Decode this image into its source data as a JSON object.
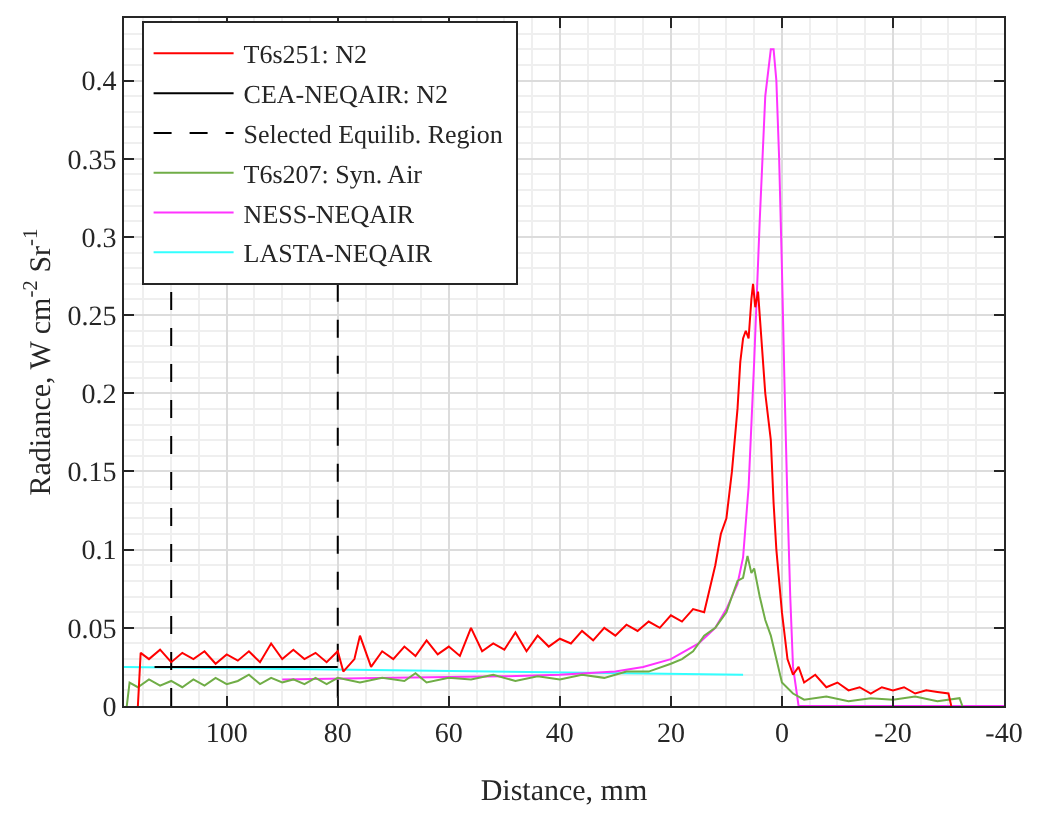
{
  "chart_data": {
    "type": "line",
    "xlabel": "Distance, mm",
    "ylabel": "Radiance, W cm$^{-2}$ Sr$^{-1}$",
    "xlim": [
      118.5,
      -40
    ],
    "ylim": [
      0,
      0.44
    ],
    "xticks": [
      100,
      80,
      60,
      40,
      20,
      0,
      -20,
      -40
    ],
    "yticks": [
      0,
      0.05,
      0.1,
      0.15,
      0.2,
      0.25,
      0.3,
      0.35,
      0.4
    ],
    "grid": true,
    "legend": "top left",
    "marker": "none",
    "series": [
      {
        "name": "T6s251: N2",
        "color": "#ff0000",
        "line_style": "solid",
        "x": [
          116,
          115.5,
          114,
          112,
          110,
          108,
          106,
          104,
          102,
          100,
          98,
          96,
          94,
          92,
          90,
          88,
          86,
          84,
          82,
          80,
          79,
          77,
          76,
          74,
          72,
          70,
          68,
          66,
          64,
          62,
          60,
          58,
          56,
          54,
          52,
          50,
          48,
          46,
          44,
          42,
          40,
          38,
          36,
          34,
          32,
          30,
          28,
          26,
          24,
          22,
          20,
          18,
          16,
          14,
          13,
          12,
          11,
          10,
          9,
          8,
          7.5,
          7,
          6.5,
          6,
          5.5,
          5.2,
          4.8,
          4.3,
          3.8,
          3,
          2,
          1.5,
          1,
          0,
          -1,
          -2,
          -3,
          -4,
          -6,
          -8,
          -10,
          -12,
          -14,
          -16,
          -18,
          -20,
          -22,
          -24,
          -26,
          -28,
          -30,
          -30.5
        ],
        "values": [
          0,
          0.034,
          0.03,
          0.036,
          0.028,
          0.034,
          0.03,
          0.035,
          0.027,
          0.033,
          0.029,
          0.035,
          0.028,
          0.04,
          0.03,
          0.036,
          0.03,
          0.034,
          0.028,
          0.035,
          0.022,
          0.03,
          0.045,
          0.025,
          0.035,
          0.03,
          0.038,
          0.032,
          0.042,
          0.033,
          0.038,
          0.032,
          0.05,
          0.035,
          0.04,
          0.036,
          0.047,
          0.035,
          0.045,
          0.038,
          0.043,
          0.04,
          0.048,
          0.042,
          0.05,
          0.045,
          0.052,
          0.048,
          0.054,
          0.05,
          0.058,
          0.054,
          0.062,
          0.06,
          0.075,
          0.09,
          0.11,
          0.12,
          0.15,
          0.19,
          0.22,
          0.235,
          0.24,
          0.235,
          0.26,
          0.27,
          0.255,
          0.265,
          0.24,
          0.2,
          0.17,
          0.13,
          0.1,
          0.06,
          0.03,
          0.02,
          0.025,
          0.015,
          0.02,
          0.012,
          0.015,
          0.01,
          0.012,
          0.008,
          0.012,
          0.01,
          0.012,
          0.008,
          0.01,
          0.009,
          0.008,
          0
        ]
      },
      {
        "name": "CEA-NEQAIR: N2",
        "color": "#000000",
        "line_style": "solid",
        "x": [
          113,
          80
        ],
        "values": [
          0.025,
          0.025
        ]
      },
      {
        "name": "Selected Equilib. Region",
        "color": "#000000",
        "line_style": "dashed",
        "x": [
          110,
          110,
          null,
          80,
          80
        ],
        "values": [
          0,
          0.27,
          null,
          0.27,
          0
        ]
      },
      {
        "name": "T6s207: Syn. Air",
        "color": "#70ad47",
        "line_style": "solid",
        "x": [
          118,
          117.5,
          116,
          114,
          112,
          110,
          108,
          106,
          104,
          102,
          100,
          98,
          96,
          94,
          92,
          90,
          88,
          86,
          84,
          82,
          80,
          76,
          72,
          68,
          66,
          64,
          60,
          56,
          52,
          48,
          44,
          40,
          36,
          32,
          28,
          24,
          20,
          18,
          16,
          14,
          12,
          10,
          9,
          8,
          7,
          6.2,
          5.5,
          5,
          4,
          3,
          2,
          1,
          0,
          -2,
          -4,
          -8,
          -12,
          -16,
          -20,
          -24,
          -28,
          -32,
          -32.5
        ],
        "values": [
          0,
          0.015,
          0.012,
          0.017,
          0.013,
          0.016,
          0.012,
          0.017,
          0.013,
          0.018,
          0.014,
          0.016,
          0.02,
          0.014,
          0.018,
          0.015,
          0.017,
          0.014,
          0.018,
          0.014,
          0.018,
          0.015,
          0.018,
          0.016,
          0.021,
          0.015,
          0.018,
          0.017,
          0.02,
          0.016,
          0.019,
          0.017,
          0.02,
          0.018,
          0.022,
          0.022,
          0.027,
          0.03,
          0.035,
          0.045,
          0.05,
          0.06,
          0.07,
          0.08,
          0.082,
          0.096,
          0.085,
          0.088,
          0.07,
          0.055,
          0.045,
          0.03,
          0.015,
          0.008,
          0.004,
          0.006,
          0.003,
          0.005,
          0.004,
          0.006,
          0.003,
          0.005,
          0
        ]
      },
      {
        "name": "NESS-NEQAIR",
        "color": "#ff33ff",
        "line_style": "solid",
        "x": [
          90,
          70,
          50,
          40,
          30,
          25,
          20,
          15,
          12,
          10,
          8,
          7,
          6,
          5,
          4,
          3,
          2,
          1.5,
          1,
          0.5,
          0,
          -0.5,
          -1,
          -1.5,
          -2,
          -3,
          -40
        ],
        "values": [
          0.017,
          0.018,
          0.019,
          0.02,
          0.022,
          0.025,
          0.03,
          0.04,
          0.05,
          0.062,
          0.078,
          0.095,
          0.14,
          0.22,
          0.31,
          0.39,
          0.42,
          0.42,
          0.4,
          0.35,
          0.28,
          0.2,
          0.13,
          0.07,
          0.025,
          0,
          0
        ]
      },
      {
        "name": "LASTA-NEQAIR",
        "color": "#33ffff",
        "line_style": "solid",
        "x": [
          118.5,
          7
        ],
        "values": [
          0.025,
          0.02
        ]
      }
    ]
  }
}
